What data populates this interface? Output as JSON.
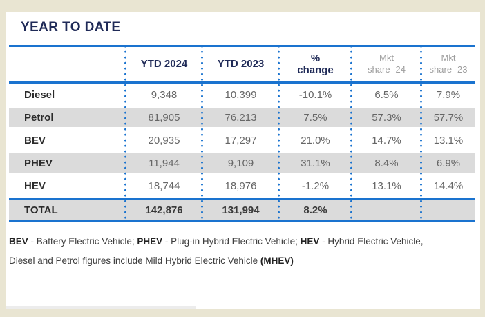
{
  "title": "YEAR TO DATE",
  "colors": {
    "frame_beige": "#e9e5d2",
    "card_white": "#ffffff",
    "navy": "#1f2a57",
    "rule_blue": "#1a73cf",
    "stripe_gray": "#dbdbdb",
    "value_gray": "#666666",
    "header_sub_gray": "#9e9e9e"
  },
  "table": {
    "header": {
      "ytd2024": "YTD 2024",
      "ytd2023": "YTD 2023",
      "pct_line1": "%",
      "pct_line2": "change",
      "mkt24_line1": "Mkt",
      "mkt24_line2": "share -24",
      "mkt23_line1": "Mkt",
      "mkt23_line2": "share -23"
    },
    "rows": [
      {
        "label": "Diesel",
        "ytd2024": "9,348",
        "ytd2023": "10,399",
        "pct": "-10.1%",
        "mkt24": "6.5%",
        "mkt23": "7.9%"
      },
      {
        "label": "Petrol",
        "ytd2024": "81,905",
        "ytd2023": "76,213",
        "pct": "7.5%",
        "mkt24": "57.3%",
        "mkt23": "57.7%"
      },
      {
        "label": "BEV",
        "ytd2024": "20,935",
        "ytd2023": "17,297",
        "pct": "21.0%",
        "mkt24": "14.7%",
        "mkt23": "13.1%"
      },
      {
        "label": "PHEV",
        "ytd2024": "11,944",
        "ytd2023": "9,109",
        "pct": "31.1%",
        "mkt24": "8.4%",
        "mkt23": "6.9%"
      },
      {
        "label": "HEV",
        "ytd2024": "18,744",
        "ytd2023": "18,976",
        "pct": "-1.2%",
        "mkt24": "13.1%",
        "mkt23": "14.4%"
      }
    ],
    "total": {
      "label": "TOTAL",
      "ytd2024": "142,876",
      "ytd2023": "131,994",
      "pct": "8.2%",
      "mkt24": "",
      "mkt23": ""
    }
  },
  "footnote": {
    "seg1": "BEV",
    "seg2": " - Battery Electric Vehicle; ",
    "seg3": "PHEV",
    "seg4": " - Plug-in Hybrid Electric Vehicle; ",
    "seg5": "HEV",
    "seg6": " - Hybrid Electric Vehicle,",
    "seg7": "Diesel and Petrol figures include Mild Hybrid Electric Vehicle ",
    "seg8": "(MHEV)"
  },
  "chart_data": {
    "type": "table",
    "title": "YEAR TO DATE",
    "columns": [
      "",
      "YTD 2024",
      "YTD 2023",
      "% change",
      "Mkt share -24",
      "Mkt share -23"
    ],
    "rows": [
      [
        "Diesel",
        9348,
        10399,
        -10.1,
        6.5,
        7.9
      ],
      [
        "Petrol",
        81905,
        76213,
        7.5,
        57.3,
        57.7
      ],
      [
        "BEV",
        20935,
        17297,
        21.0,
        14.7,
        13.1
      ],
      [
        "PHEV",
        11944,
        9109,
        31.1,
        8.4,
        6.9
      ],
      [
        "HEV",
        18744,
        18976,
        -1.2,
        13.1,
        14.4
      ],
      [
        "TOTAL",
        142876,
        131994,
        8.2,
        null,
        null
      ]
    ],
    "footnote": "BEV - Battery Electric Vehicle; PHEV - Plug-in Hybrid Electric Vehicle; HEV - Hybrid Electric Vehicle, Diesel and Petrol figures include Mild Hybrid Electric Vehicle (MHEV)"
  }
}
